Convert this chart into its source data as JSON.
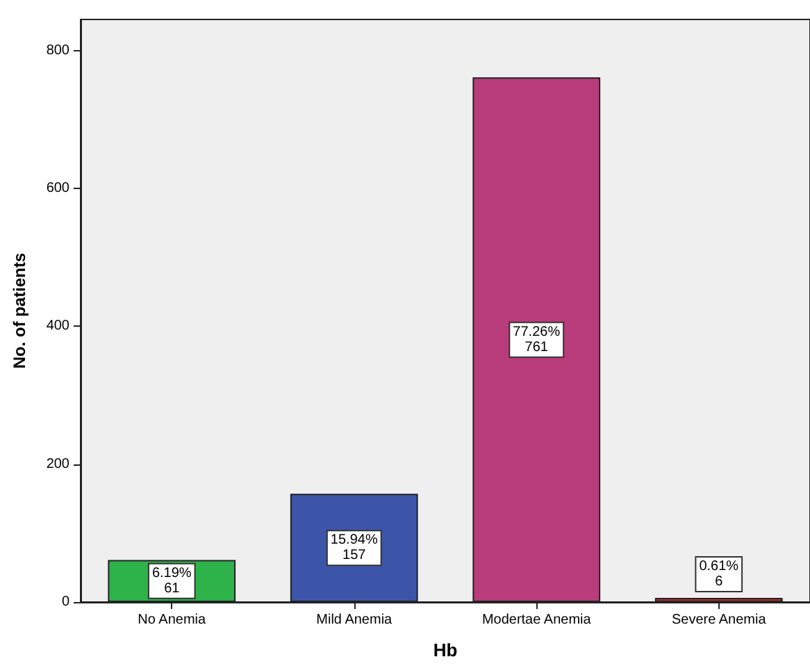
{
  "chart_data": {
    "type": "bar",
    "xlabel": "Hb",
    "ylabel": "No. of patients",
    "categories": [
      "No Anemia",
      "Mild Anemia",
      "Modertae Anemia",
      "Severe Anemia"
    ],
    "values": [
      61,
      157,
      761,
      6
    ],
    "colors": [
      "#2db34a",
      "#3d55a8",
      "#b83d7a",
      "#c0282c"
    ],
    "value_labels": [
      "6.19%\n61",
      "15.94%\n157",
      "77.26%\n761",
      "0.61%\n6"
    ],
    "ylim": [
      0,
      845
    ],
    "yticks": [
      0,
      200,
      400,
      600,
      800
    ],
    "grid": false
  }
}
